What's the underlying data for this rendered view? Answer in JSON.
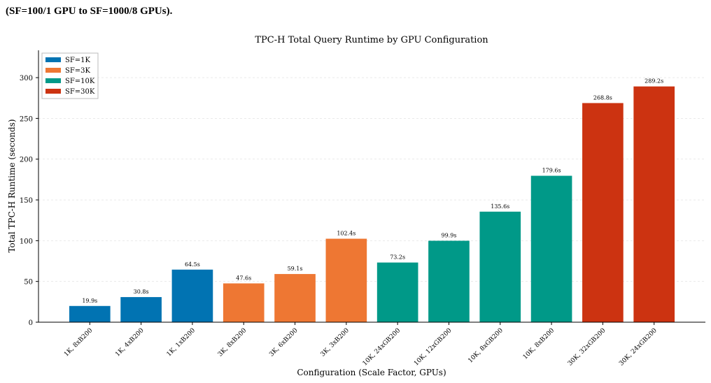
{
  "text_above": "(SF=100/1 GPU to SF=1000/8 GPUs).",
  "chart_data": {
    "type": "bar",
    "title": "TPC-H Total Query Runtime by GPU Configuration",
    "xlabel": "Configuration (Scale Factor, GPUs)",
    "ylabel": "Total TPC-H Runtime (seconds)",
    "categories": [
      "1K, 8xB200",
      "1K, 4xB200",
      "1K, 1xB200",
      "3K, 8xB200",
      "3K, 6xB200",
      "3K, 3xB200",
      "10K, 24xGB200",
      "10K, 12xGB200",
      "10K, 8xGB200",
      "10K, 8xB200",
      "30K, 32xGB200",
      "30K, 24xGB200"
    ],
    "series": [
      {
        "name": "SF=1K",
        "color": "#0173b2",
        "values": [
          19.9,
          30.8,
          64.5,
          null,
          null,
          null,
          null,
          null,
          null,
          null,
          null,
          null
        ],
        "value_labels": [
          "19.9s",
          "30.8s",
          "64.5s",
          null,
          null,
          null,
          null,
          null,
          null,
          null,
          null,
          null
        ]
      },
      {
        "name": "SF=3K",
        "color": "#ee7733",
        "values": [
          null,
          null,
          null,
          47.6,
          59.1,
          102.4,
          null,
          null,
          null,
          null,
          null,
          null
        ],
        "value_labels": [
          null,
          null,
          null,
          "47.6s",
          "59.1s",
          "102.4s",
          null,
          null,
          null,
          null,
          null,
          null
        ]
      },
      {
        "name": "SF=10K",
        "color": "#009988",
        "values": [
          null,
          null,
          null,
          null,
          null,
          null,
          73.2,
          99.9,
          135.6,
          179.6,
          null,
          null
        ],
        "value_labels": [
          null,
          null,
          null,
          null,
          null,
          null,
          "73.2s",
          "99.9s",
          "135.6s",
          "179.6s",
          null,
          null
        ]
      },
      {
        "name": "SF=30K",
        "color": "#cc3311",
        "values": [
          null,
          null,
          null,
          null,
          null,
          null,
          null,
          null,
          null,
          null,
          268.8,
          289.2
        ],
        "value_labels": [
          null,
          null,
          null,
          null,
          null,
          null,
          null,
          null,
          null,
          null,
          "268.8s",
          "289.2s"
        ]
      }
    ],
    "ylim": [
      0,
      333.5
    ],
    "yticks": [
      0,
      50,
      100,
      150,
      200,
      250,
      300
    ],
    "grid": true,
    "legend": "upper left"
  }
}
